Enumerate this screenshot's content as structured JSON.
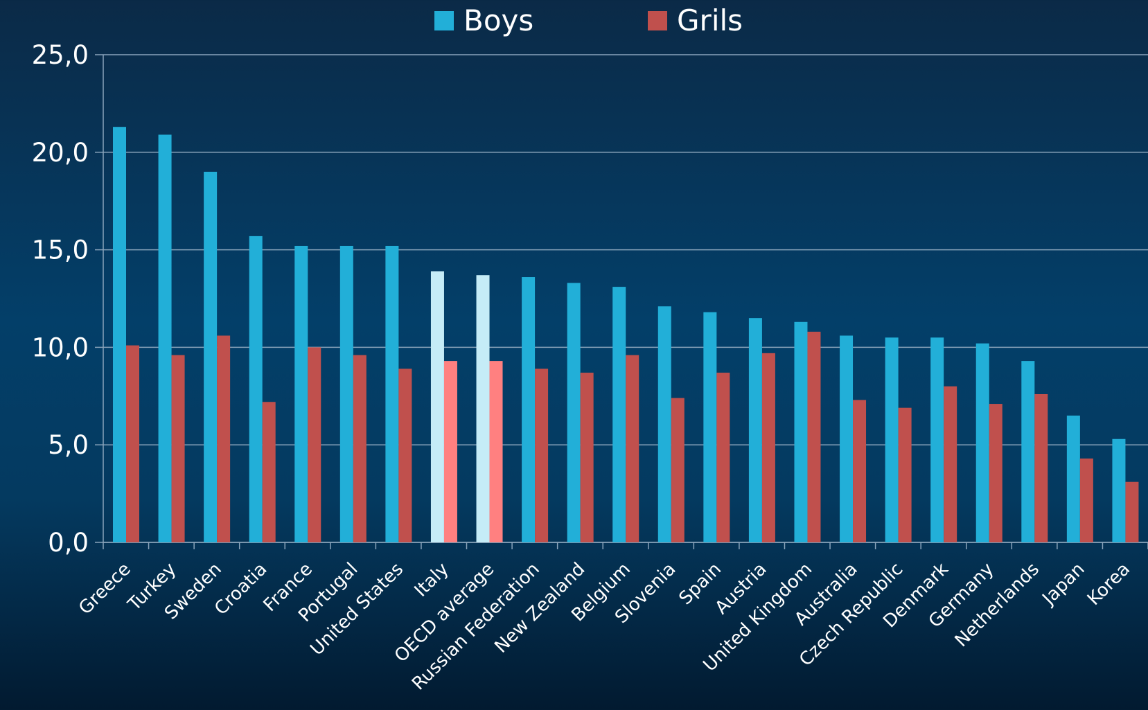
{
  "chart_data": {
    "type": "bar",
    "categories": [
      "Greece",
      "Turkey",
      "Sweden",
      "Croatia",
      "France",
      "Portugal",
      "United States",
      "Italy",
      "OECD average",
      "Russian Federation",
      "New Zealand",
      "Belgium",
      "Slovenia",
      "Spain",
      "Austria",
      "United Kingdom",
      "Australia",
      "Czech Republic",
      "Denmark",
      "Germany",
      "Netherlands",
      "Japan",
      "Korea"
    ],
    "series": [
      {
        "name": "Boys",
        "color": "#22afd8",
        "point_colors": [
          null,
          null,
          null,
          null,
          null,
          null,
          null,
          "#c5ecf7",
          "#c5ecf7",
          null,
          null,
          null,
          null,
          null,
          null,
          null,
          null,
          null,
          null,
          null,
          null,
          null,
          null
        ],
        "values": [
          21.3,
          20.9,
          19.0,
          15.7,
          15.2,
          15.2,
          15.2,
          13.9,
          13.7,
          13.6,
          13.3,
          13.1,
          12.1,
          11.8,
          11.5,
          11.3,
          10.6,
          10.5,
          10.5,
          10.2,
          9.3,
          6.5,
          5.3
        ]
      },
      {
        "name": "Grils",
        "color": "#c0504d",
        "point_colors": [
          null,
          null,
          null,
          null,
          null,
          null,
          null,
          "#ff8080",
          "#ff8080",
          null,
          null,
          null,
          null,
          null,
          null,
          null,
          null,
          null,
          null,
          null,
          null,
          null,
          null
        ],
        "values": [
          10.1,
          9.6,
          10.6,
          7.2,
          10.0,
          9.6,
          8.9,
          9.3,
          9.3,
          8.9,
          8.7,
          9.6,
          7.4,
          8.7,
          9.7,
          10.8,
          7.3,
          6.9,
          8.0,
          7.1,
          7.6,
          4.3,
          3.1
        ]
      }
    ],
    "ylim": [
      0,
      25
    ],
    "yticks": [
      {
        "value": 0,
        "label": "0,0"
      },
      {
        "value": 5,
        "label": "5,0"
      },
      {
        "value": 10,
        "label": "10,0"
      },
      {
        "value": 15,
        "label": "15,0"
      },
      {
        "value": 20,
        "label": "20,0"
      },
      {
        "value": 25,
        "label": "25,0"
      }
    ],
    "grid": true,
    "legend": "top"
  }
}
